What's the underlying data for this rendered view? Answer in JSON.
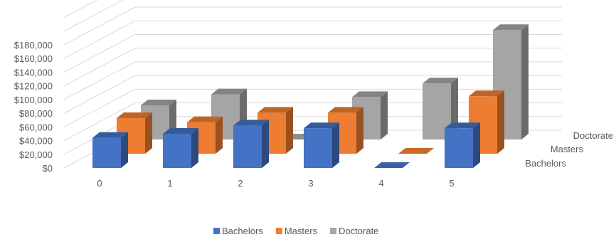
{
  "chart_data": {
    "type": "bar",
    "subtype": "3d-column",
    "title": "",
    "xlabel": "",
    "ylabel": "",
    "categories": [
      "0",
      "1",
      "2",
      "3",
      "4",
      "5"
    ],
    "series": [
      {
        "name": "Bachelors",
        "color": "#4472C4",
        "values": [
          44000,
          50000,
          62000,
          58000,
          0,
          58000
        ]
      },
      {
        "name": "Masters",
        "color": "#ED7D31",
        "values": [
          52000,
          46000,
          60000,
          60000,
          0,
          84000
        ]
      },
      {
        "name": "Doctorate",
        "color": "#A5A5A5",
        "values": [
          50000,
          66000,
          0,
          62000,
          82000,
          160000
        ]
      }
    ],
    "depth_labels": [
      "Bachelors",
      "Masters",
      "Doctorate"
    ],
    "y_tick_labels": [
      "$0",
      "$20,000",
      "$40,000",
      "$60,000",
      "$80,000",
      "$100,000",
      "$120,000",
      "$140,000",
      "$160,000",
      "$180,000"
    ],
    "ylim": [
      0,
      180000
    ],
    "y_format": "currency",
    "grid": true,
    "legend": "bottom"
  }
}
